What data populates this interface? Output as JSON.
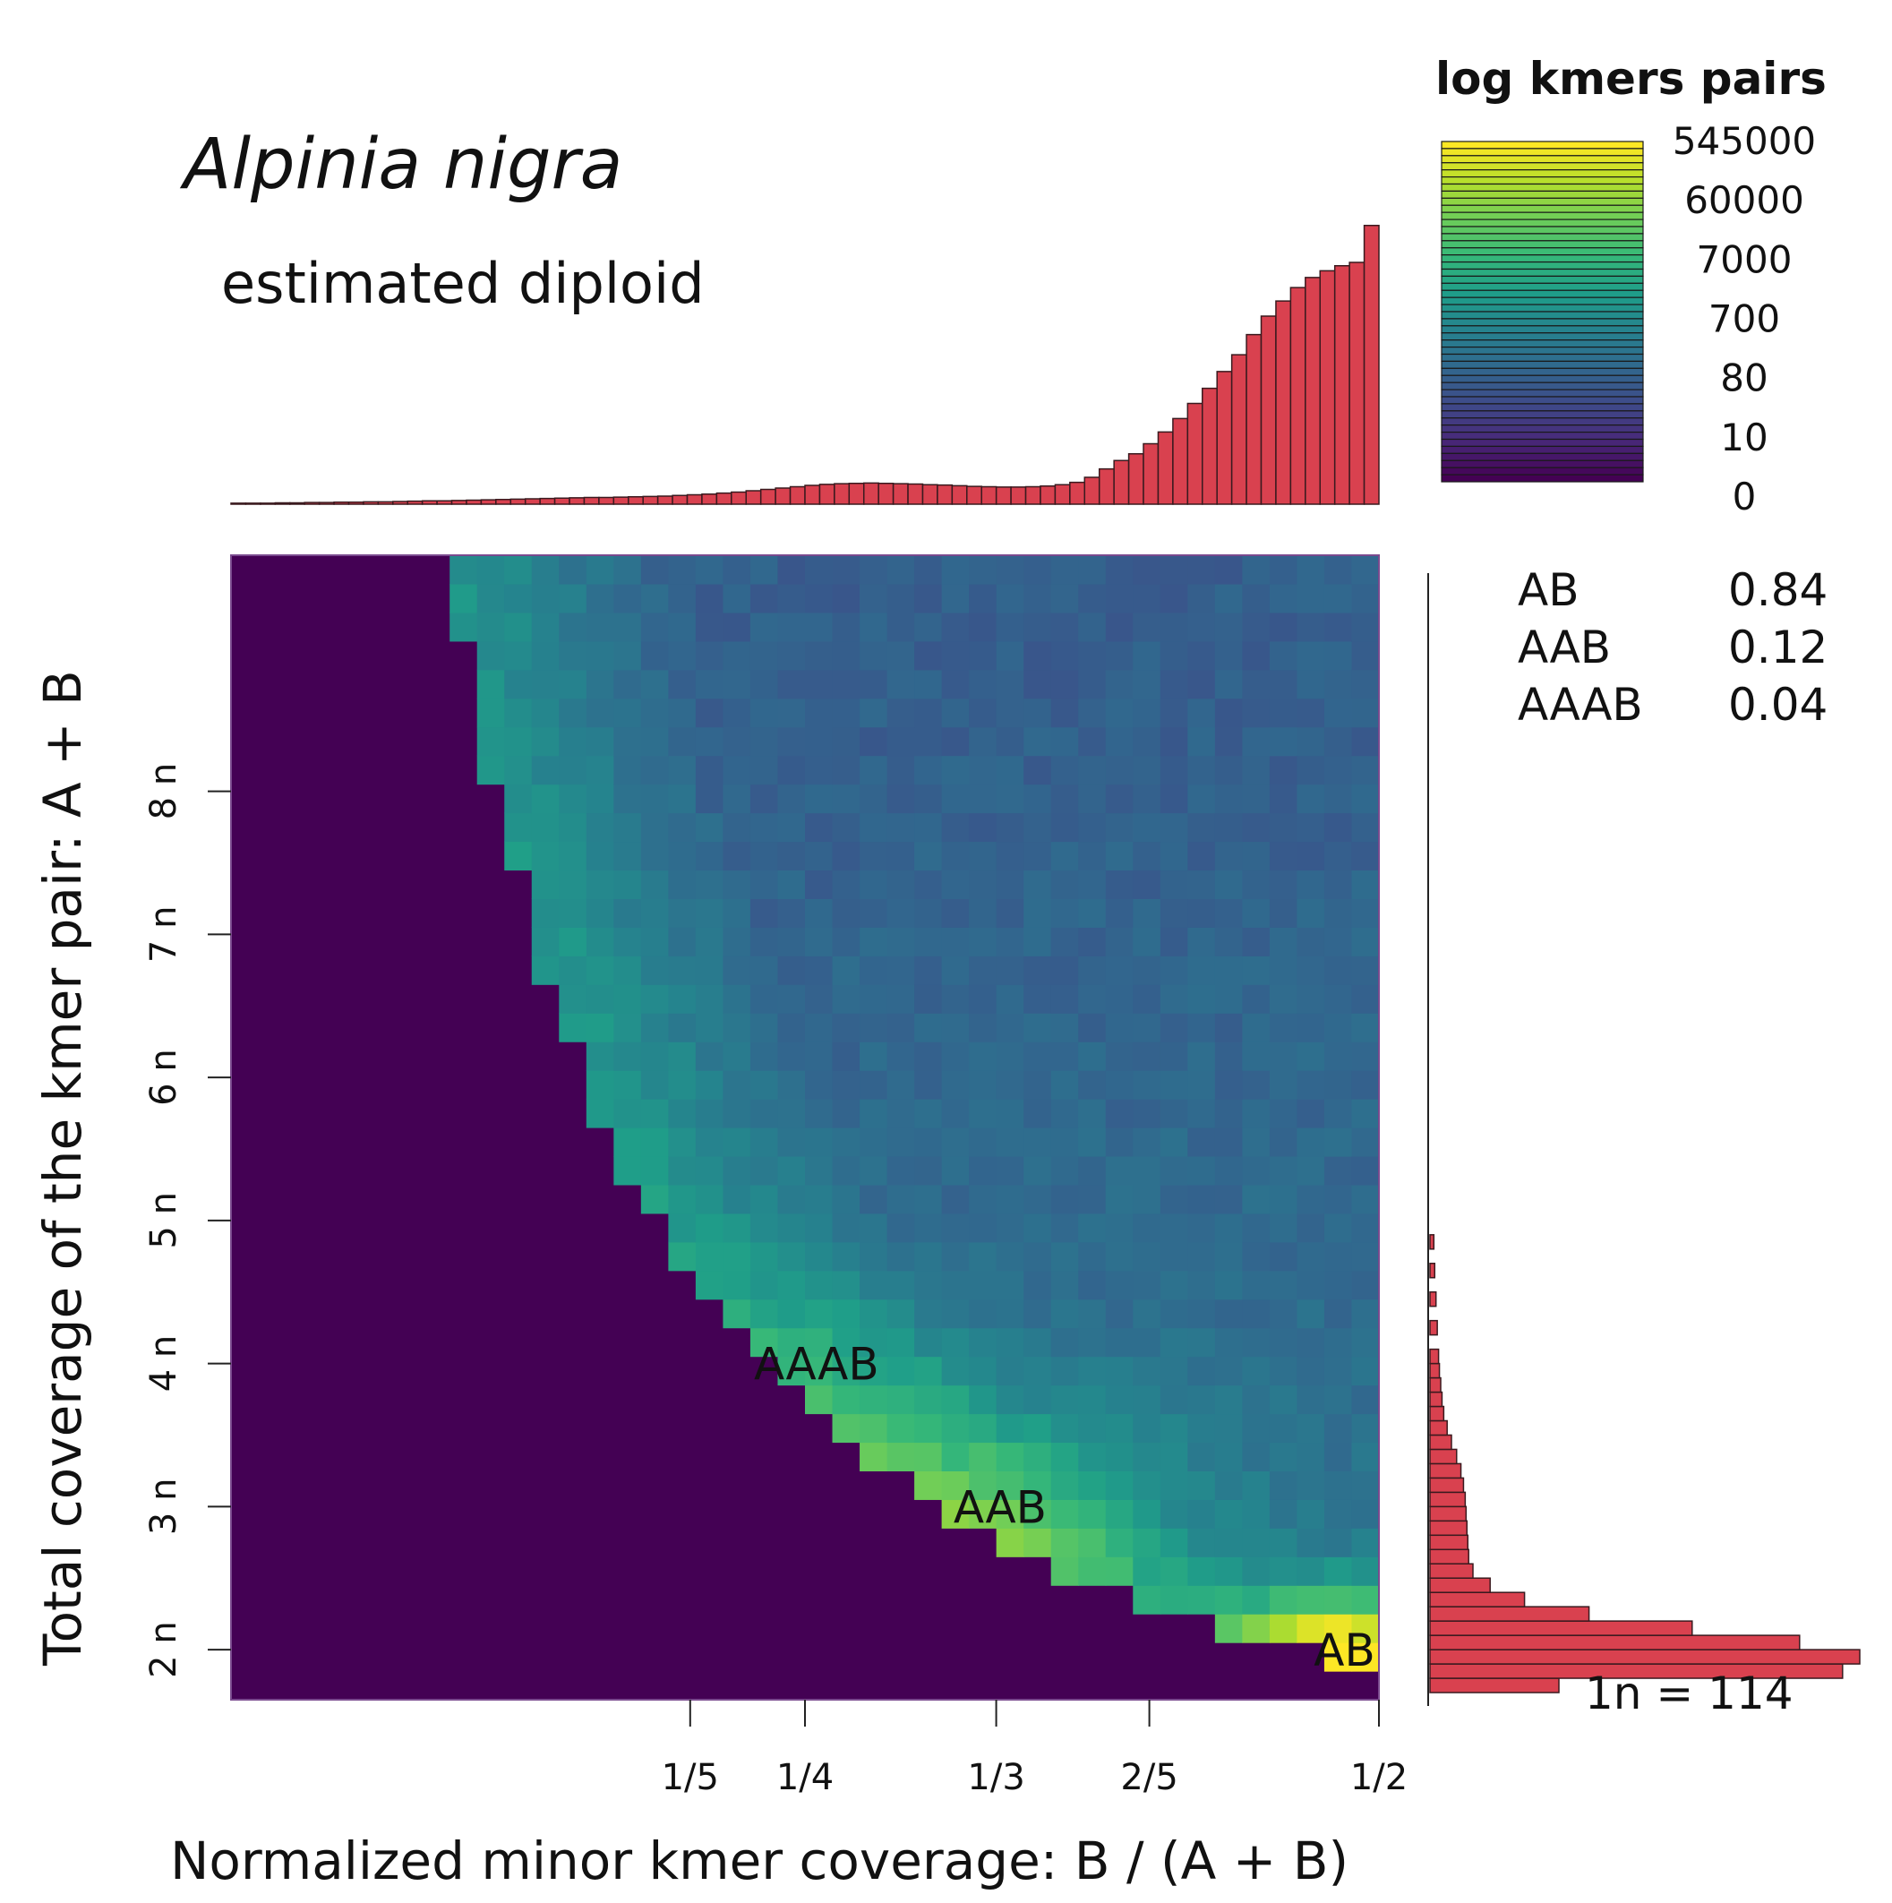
{
  "chart_data": {
    "type": "heatmap",
    "title": "Alpinia nigra",
    "subtitle": "estimated diploid",
    "xlabel": "Normalized minor kmer coverage: B / (A + B)",
    "ylabel": "Total coverage of the kmer pair: A + B",
    "x_ticks": [
      {
        "label": "1/5",
        "value": 0.2
      },
      {
        "label": "1/4",
        "value": 0.25
      },
      {
        "label": "1/3",
        "value": 0.3333
      },
      {
        "label": "2/5",
        "value": 0.4
      },
      {
        "label": "1/2",
        "value": 0.5
      }
    ],
    "y_ticks": [
      {
        "label": "2 n",
        "value": 2
      },
      {
        "label": "3 n",
        "value": 3
      },
      {
        "label": "4 n",
        "value": 4
      },
      {
        "label": "5 n",
        "value": 5
      },
      {
        "label": "6 n",
        "value": 6
      },
      {
        "label": "7 n",
        "value": 7
      },
      {
        "label": "8 n",
        "value": 8
      }
    ],
    "xlim": [
      0.0,
      0.5
    ],
    "ylim": [
      1.65,
      9.65
    ],
    "smudge_labels": [
      {
        "label": "AB",
        "x": 0.485,
        "y": 2.0
      },
      {
        "label": "AAB",
        "x": 0.335,
        "y": 3.0
      },
      {
        "label": "AAAB",
        "x": 0.255,
        "y": 4.0
      }
    ],
    "legend": {
      "title": "log kmers pairs",
      "labels": [
        "545000",
        "60000",
        "7000",
        "700",
        "80",
        "10",
        "0"
      ],
      "colors": [
        "#440154",
        "#3b528b",
        "#21918c",
        "#5ec962",
        "#fde725"
      ]
    },
    "proportions": [
      {
        "label": "AB",
        "value": "0.84"
      },
      {
        "label": "AAB",
        "value": "0.12"
      },
      {
        "label": "AAAB",
        "value": "0.04"
      }
    ],
    "coverage_annotation": "1n = 114",
    "bar_color": "#d9414f",
    "top_histogram": [
      0.003,
      0.003,
      0.003,
      0.004,
      0.004,
      0.005,
      0.005,
      0.006,
      0.006,
      0.007,
      0.007,
      0.008,
      0.009,
      0.01,
      0.01,
      0.011,
      0.012,
      0.013,
      0.014,
      0.015,
      0.016,
      0.017,
      0.018,
      0.019,
      0.02,
      0.02,
      0.021,
      0.022,
      0.023,
      0.024,
      0.026,
      0.028,
      0.03,
      0.033,
      0.036,
      0.04,
      0.044,
      0.048,
      0.052,
      0.056,
      0.059,
      0.061,
      0.062,
      0.063,
      0.062,
      0.061,
      0.06,
      0.058,
      0.057,
      0.055,
      0.053,
      0.052,
      0.051,
      0.051,
      0.052,
      0.054,
      0.058,
      0.065,
      0.08,
      0.105,
      0.13,
      0.15,
      0.18,
      0.215,
      0.255,
      0.3,
      0.345,
      0.395,
      0.445,
      0.505,
      0.56,
      0.605,
      0.645,
      0.675,
      0.695,
      0.71,
      0.72,
      0.83
    ],
    "right_histogram": [
      {
        "y": 1.75,
        "v": 0.3
      },
      {
        "y": 1.85,
        "v": 0.96
      },
      {
        "y": 1.95,
        "v": 1.0
      },
      {
        "y": 2.05,
        "v": 0.86
      },
      {
        "y": 2.15,
        "v": 0.61
      },
      {
        "y": 2.25,
        "v": 0.37
      },
      {
        "y": 2.35,
        "v": 0.22
      },
      {
        "y": 2.45,
        "v": 0.14
      },
      {
        "y": 2.55,
        "v": 0.1
      },
      {
        "y": 2.65,
        "v": 0.09
      },
      {
        "y": 2.75,
        "v": 0.088
      },
      {
        "y": 2.85,
        "v": 0.086
      },
      {
        "y": 2.95,
        "v": 0.084
      },
      {
        "y": 3.05,
        "v": 0.082
      },
      {
        "y": 3.15,
        "v": 0.078
      },
      {
        "y": 3.25,
        "v": 0.072
      },
      {
        "y": 3.35,
        "v": 0.062
      },
      {
        "y": 3.45,
        "v": 0.05
      },
      {
        "y": 3.55,
        "v": 0.04
      },
      {
        "y": 3.65,
        "v": 0.032
      },
      {
        "y": 3.75,
        "v": 0.028
      },
      {
        "y": 3.85,
        "v": 0.025
      },
      {
        "y": 3.95,
        "v": 0.022
      },
      {
        "y": 4.05,
        "v": 0.02
      },
      {
        "y": 4.25,
        "v": 0.017
      },
      {
        "y": 4.45,
        "v": 0.014
      },
      {
        "y": 4.65,
        "v": 0.011
      },
      {
        "y": 4.85,
        "v": 0.009
      }
    ]
  }
}
